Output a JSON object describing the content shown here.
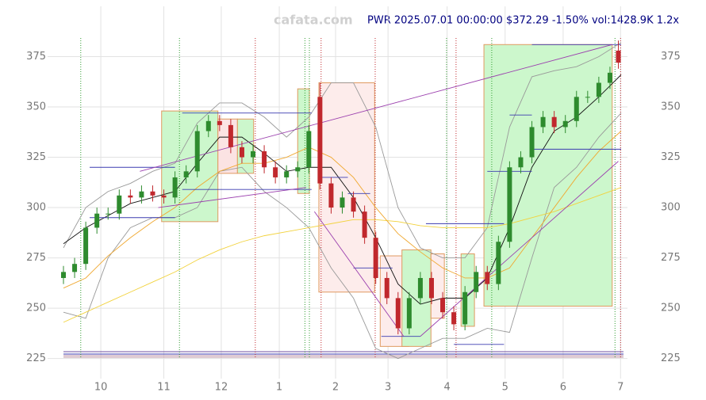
{
  "chart_data": {
    "type": "candlestick",
    "watermark": "cafata.com",
    "title": "PWR 2025.07.01 00:00:00 $372.29 -1.50% vol:1428.9K 1.2x",
    "xlim": [
      0,
      100
    ],
    "ylim": [
      215,
      400
    ],
    "grid": true,
    "xticks": [
      {
        "value": 6.7,
        "label": "10"
      },
      {
        "value": 18,
        "label": "11"
      },
      {
        "value": 28.3,
        "label": "12"
      },
      {
        "value": 38.7,
        "label": "1"
      },
      {
        "value": 48.8,
        "label": "2"
      },
      {
        "value": 58.2,
        "label": "3"
      },
      {
        "value": 68.8,
        "label": "4"
      },
      {
        "value": 79.2,
        "label": "5"
      },
      {
        "value": 89.6,
        "label": "6"
      },
      {
        "value": 99.9,
        "label": "7"
      }
    ],
    "yticks": [
      225,
      250,
      275,
      300,
      325,
      350,
      375
    ],
    "up_color": "#2e8b2e",
    "down_color": "#c0282d",
    "x": [
      0,
      2,
      4,
      6,
      8,
      10,
      12,
      14,
      16,
      18,
      20,
      22,
      24,
      26,
      28,
      30,
      32,
      34,
      36,
      38,
      40,
      42,
      44,
      46,
      48,
      50,
      52,
      54,
      56,
      58,
      60,
      62,
      64,
      66,
      68,
      70,
      72,
      74,
      76,
      78,
      80,
      82,
      84,
      86,
      88,
      90,
      92,
      94,
      96,
      98,
      99.5
    ],
    "open": [
      265,
      268,
      272,
      290,
      297,
      297,
      306,
      305,
      308,
      306,
      305,
      315,
      318,
      338,
      343,
      341,
      330,
      325,
      328,
      320,
      315,
      318,
      320,
      355,
      312,
      300,
      305,
      298,
      285,
      265,
      255,
      240,
      255,
      265,
      255,
      248,
      242,
      258,
      268,
      262,
      283,
      320,
      325,
      340,
      345,
      340,
      343,
      355,
      355,
      362,
      378
    ],
    "close": [
      268,
      272,
      290,
      297,
      297,
      306,
      305,
      308,
      306,
      305,
      315,
      318,
      338,
      343,
      341,
      330,
      325,
      328,
      320,
      315,
      318,
      320,
      338,
      312,
      300,
      305,
      298,
      285,
      265,
      255,
      240,
      255,
      265,
      255,
      248,
      242,
      258,
      268,
      262,
      283,
      320,
      325,
      340,
      345,
      340,
      343,
      355,
      355,
      362,
      367,
      372
    ],
    "high": [
      271,
      275,
      293,
      300,
      300,
      309,
      309,
      311,
      311,
      309,
      318,
      321,
      341,
      346,
      346,
      344,
      333,
      331,
      331,
      323,
      321,
      323,
      341,
      362,
      315,
      308,
      308,
      301,
      288,
      268,
      258,
      258,
      268,
      268,
      258,
      251,
      261,
      271,
      271,
      286,
      323,
      328,
      343,
      348,
      348,
      346,
      358,
      358,
      365,
      370,
      383
    ],
    "low": [
      262,
      265,
      269,
      287,
      294,
      294,
      302,
      302,
      303,
      302,
      302,
      312,
      315,
      335,
      338,
      327,
      322,
      322,
      317,
      312,
      312,
      315,
      317,
      309,
      297,
      297,
      295,
      282,
      262,
      252,
      237,
      237,
      252,
      252,
      245,
      239,
      239,
      255,
      259,
      259,
      280,
      317,
      322,
      337,
      337,
      337,
      340,
      352,
      352,
      359,
      369
    ],
    "lines": [
      {
        "color": "#999999",
        "x": [
          0,
          4,
          8,
          12,
          16,
          20,
          24,
          28,
          32,
          36,
          40,
          44,
          48,
          52,
          56,
          60,
          64,
          68,
          72,
          76,
          80,
          84,
          88,
          92,
          96,
          100
        ],
        "values": [
          280,
          300,
          308,
          312,
          318,
          322,
          342,
          352,
          352,
          345,
          335,
          345,
          362,
          362,
          340,
          300,
          280,
          275,
          275,
          290,
          340,
          365,
          368,
          370,
          375,
          382
        ]
      },
      {
        "color": "#999999",
        "x": [
          0,
          4,
          8,
          12,
          16,
          20,
          24,
          28,
          32,
          36,
          40,
          44,
          48,
          52,
          56,
          60,
          64,
          68,
          72,
          76,
          80,
          84,
          88,
          92,
          96,
          100
        ],
        "values": [
          248,
          245,
          275,
          290,
          295,
          295,
          300,
          318,
          320,
          308,
          300,
          290,
          270,
          255,
          230,
          225,
          230,
          235,
          235,
          240,
          238,
          275,
          310,
          320,
          335,
          347
        ]
      },
      {
        "color": "#f2d23c",
        "x": [
          0,
          4,
          8,
          12,
          16,
          20,
          24,
          28,
          32,
          36,
          40,
          44,
          48,
          52,
          56,
          60,
          64,
          68,
          72,
          76,
          80,
          84,
          88,
          92,
          96,
          100
        ],
        "values": [
          243,
          248,
          253,
          258,
          263,
          268,
          274,
          279,
          283,
          286,
          288,
          290,
          292,
          294,
          294,
          293,
          291,
          290,
          290,
          290,
          292,
          295,
          298,
          302,
          306,
          310
        ]
      },
      {
        "color": "#f0a830",
        "x": [
          0,
          4,
          8,
          12,
          16,
          20,
          24,
          28,
          32,
          36,
          40,
          44,
          48,
          52,
          56,
          60,
          64,
          68,
          72,
          76,
          80,
          84,
          88,
          92,
          96,
          100
        ],
        "values": [
          260,
          265,
          276,
          285,
          293,
          300,
          310,
          318,
          322,
          322,
          325,
          330,
          325,
          315,
          300,
          287,
          278,
          270,
          265,
          265,
          270,
          285,
          300,
          315,
          328,
          338
        ]
      },
      {
        "color": "#111111",
        "x": [
          0,
          4,
          8,
          12,
          16,
          20,
          24,
          28,
          32,
          36,
          40,
          44,
          48,
          52,
          56,
          60,
          64,
          68,
          72,
          76,
          80,
          84,
          88,
          92,
          96,
          100
        ],
        "values": [
          282,
          290,
          296,
          302,
          305,
          308,
          322,
          335,
          335,
          327,
          318,
          320,
          320,
          305,
          285,
          262,
          252,
          255,
          255,
          265,
          290,
          320,
          338,
          345,
          355,
          366
        ]
      }
    ],
    "boxes": [
      {
        "color": "#ccf7cc",
        "x": [
          17.6,
          27.7
        ],
        "y": [
          293,
          348
        ]
      },
      {
        "color": "#fbe3e3",
        "x": [
          27.7,
          31.2
        ],
        "y": [
          317,
          344
        ]
      },
      {
        "color": "#ccf7cc",
        "x": [
          31.2,
          34.1
        ],
        "y": [
          317,
          344
        ]
      },
      {
        "color": "#ccf7cc",
        "x": [
          42,
          44.1
        ],
        "y": [
          307,
          359
        ]
      },
      {
        "color": "#fdeceb",
        "x": [
          45.8,
          55.8
        ],
        "y": [
          258,
          362
        ]
      },
      {
        "color": "#fdeceb",
        "x": [
          56.8,
          61.9
        ],
        "y": [
          231,
          276
        ]
      },
      {
        "color": "#ccf7cc",
        "x": [
          60.7,
          65.9
        ],
        "y": [
          231,
          279
        ]
      },
      {
        "color": "#fdeceb",
        "x": [
          65.9,
          68.3
        ],
        "y": [
          245,
          277
        ]
      },
      {
        "color": "#ccf7cc",
        "x": [
          71.3,
          73.7
        ],
        "y": [
          241,
          277
        ]
      },
      {
        "color": "#ccf7cc",
        "x": [
          75.4,
          98.4
        ],
        "y": [
          251,
          381
        ]
      }
    ],
    "trendlines": [
      {
        "color": "#9b3fae",
        "x": [
          13.7,
          98.4
        ],
        "y": [
          318,
          381
        ]
      },
      {
        "color": "#9b3fae",
        "x": [
          17,
          43.5
        ],
        "y": [
          300,
          310
        ]
      },
      {
        "color": "#9b3fae",
        "x": [
          45,
          61
        ],
        "y": [
          298,
          236
        ]
      },
      {
        "color": "#9b3fae",
        "x": [
          64,
          99.5
        ],
        "y": [
          236,
          323
        ]
      }
    ],
    "levels": [
      {
        "color": "#3b3bb0",
        "x": [
          4.7,
          20
        ],
        "y": 320
      },
      {
        "color": "#3b3bb0",
        "x": [
          4.7,
          20
        ],
        "y": 295
      },
      {
        "color": "#3b3bb0",
        "x": [
          21.3,
          44.5
        ],
        "y": 347
      },
      {
        "color": "#3b3bb0",
        "x": [
          21.3,
          44.5
        ],
        "y": 309
      },
      {
        "color": "#3b3bb0",
        "x": [
          46,
          51
        ],
        "y": 315
      },
      {
        "color": "#3b3bb0",
        "x": [
          51,
          55
        ],
        "y": 307
      },
      {
        "color": "#3b3bb0",
        "x": [
          52,
          59
        ],
        "y": 270
      },
      {
        "color": "#3b3bb0",
        "x": [
          65,
          79
        ],
        "y": 292
      },
      {
        "color": "#3b3bb0",
        "x": [
          57,
          64
        ],
        "y": 236
      },
      {
        "color": "#3b3bb0",
        "x": [
          70,
          79
        ],
        "y": 232
      },
      {
        "color": "#3b3bb0",
        "x": [
          76,
          84
        ],
        "y": 318
      },
      {
        "color": "#3b3bb0",
        "x": [
          80,
          84
        ],
        "y": 346
      },
      {
        "color": "#3b3bb0",
        "x": [
          84,
          100
        ],
        "y": 329
      },
      {
        "color": "#3b3bb0",
        "x": [
          84,
          100
        ],
        "y": 381
      }
    ],
    "signals": [
      {
        "color": "#2e9b2e",
        "x": 3.1
      },
      {
        "color": "#2e9b2e",
        "x": 20.8
      },
      {
        "color": "#c0282d",
        "x": 34.4
      },
      {
        "color": "#2e9b2e",
        "x": 43.3
      },
      {
        "color": "#2e9b2e",
        "x": 44.1
      },
      {
        "color": "#c0282d",
        "x": 46.2
      },
      {
        "color": "#c0282d",
        "x": 55.9
      },
      {
        "color": "#2e9b2e",
        "x": 68.7
      },
      {
        "color": "#c0282d",
        "x": 70.4
      },
      {
        "color": "#2e9b2e",
        "x": 76.8
      },
      {
        "color": "#2e9b2e",
        "x": 98.9
      },
      {
        "color": "#c0282d",
        "x": 99.9
      }
    ]
  }
}
